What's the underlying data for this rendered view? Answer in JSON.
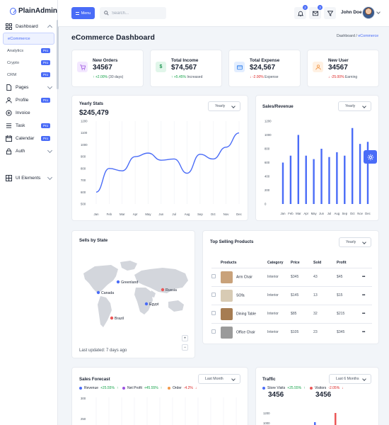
{
  "brand": {
    "name": "PlainAdmin"
  },
  "sidebar": {
    "items": [
      {
        "label": "Dashboard"
      },
      {
        "label": "eCommerce"
      },
      {
        "label": "Analytics",
        "badge": "Pro"
      },
      {
        "label": "Crypto",
        "badge": "Pro"
      },
      {
        "label": "CRM",
        "badge": "Pro"
      },
      {
        "label": "Pages"
      },
      {
        "label": "Profile",
        "badge": "Pro"
      },
      {
        "label": "Invoice"
      },
      {
        "label": "Task",
        "badge": "Pro"
      },
      {
        "label": "Calendar",
        "badge": "Pro"
      },
      {
        "label": "Auth"
      },
      {
        "label": "UI Elements"
      }
    ]
  },
  "header": {
    "menu_label": "Menu",
    "search_placeholder": "Search...",
    "notification_count": "2",
    "message_count": "3",
    "user_name": "John Doe"
  },
  "page": {
    "title": "eCommerce Dashboard",
    "breadcrumb": [
      "Dashboard",
      "eCommerce"
    ]
  },
  "stats": [
    {
      "label": "New Orders",
      "value": "34567",
      "trend": "↑ +2.00%",
      "trend_note": "(30 days)",
      "direction": "up",
      "color": "#9b51e0",
      "bg": "#f3e8ff",
      "icon": "cart-icon"
    },
    {
      "label": "Total Income",
      "value": "$74,567",
      "trend": "↑ +5.45%",
      "trend_note": "Increased",
      "direction": "up",
      "color": "#219653",
      "bg": "#e1f6ea",
      "icon": "dollar-icon"
    },
    {
      "label": "Total Expense",
      "value": "$24,567",
      "trend": "↓ -2.00%",
      "trend_note": "Expense",
      "direction": "down",
      "color": "#2f80ed",
      "bg": "#e3eeff",
      "icon": "wallet-icon"
    },
    {
      "label": "New User",
      "value": "34567",
      "trend": "↓ -25.00%",
      "trend_note": "Earning",
      "direction": "down",
      "color": "#f2994a",
      "bg": "#fff1e3",
      "icon": "user-icon"
    }
  ],
  "yearly_stats": {
    "title": "Yearly Stats",
    "value": "$245,479",
    "filter": "Yearly",
    "chart_data": {
      "type": "line",
      "categories": [
        "Jan",
        "Feb",
        "Mar",
        "Apr",
        "May",
        "Jun",
        "Jul",
        "Aug",
        "Sep",
        "Oct",
        "Nov",
        "Dec"
      ],
      "values": [
        600,
        800,
        780,
        900,
        930,
        870,
        880,
        760,
        920,
        880,
        980,
        1100
      ],
      "ylim": [
        500,
        1200
      ],
      "yticks": [
        500,
        600,
        700,
        800,
        900,
        1000,
        1100,
        1200
      ],
      "color": "#4a6cf7"
    }
  },
  "sales_revenue": {
    "title": "Sales/Revenue",
    "filter": "Yearly",
    "chart_data": {
      "type": "bar",
      "categories": [
        "Jan",
        "Feb",
        "Mar",
        "Apr",
        "May",
        "Jun",
        "Jul",
        "Aug",
        "Sep",
        "Oct",
        "Nov",
        "Dec"
      ],
      "values": [
        600,
        700,
        1000,
        700,
        650,
        800,
        680,
        750,
        700,
        1100,
        870,
        900
      ],
      "ylim": [
        0,
        1200
      ],
      "yticks": [
        0,
        200,
        400,
        600,
        800,
        1000,
        1200
      ],
      "color": "#4a6cf7"
    }
  },
  "sells_by_state": {
    "title": "Sells by State",
    "updated": "Last updated: 7 days ago",
    "markers": [
      {
        "label": "Greenland",
        "color": "#4a6cf7"
      },
      {
        "label": "Canada",
        "color": "#4a6cf7"
      },
      {
        "label": "Russia",
        "color": "#eb5757"
      },
      {
        "label": "Egypt",
        "color": "#4a6cf7"
      },
      {
        "label": "Brazil",
        "color": "#eb5757"
      }
    ],
    "zoom_in": "+",
    "zoom_out": "−"
  },
  "top_products": {
    "title": "Top Selling Products",
    "filter": "Yearly",
    "columns": [
      "Products",
      "Category",
      "Price",
      "Sold",
      "Profit"
    ],
    "rows": [
      {
        "name": "Arm Chair",
        "category": "Interior",
        "price": "$345",
        "sold": "43",
        "profit": "$45",
        "thumb": "#c9a27a"
      },
      {
        "name": "SOfa",
        "category": "Interior",
        "price": "$145",
        "sold": "13",
        "profit": "$15",
        "thumb": "#d8cbb4"
      },
      {
        "name": "Dining Table",
        "category": "Interior",
        "price": "$85",
        "sold": "32",
        "profit": "$215",
        "thumb": "#a67c52"
      },
      {
        "name": "Office Chair",
        "category": "Interior",
        "price": "$105",
        "sold": "23",
        "profit": "$345",
        "thumb": "#9a9a9a"
      }
    ]
  },
  "sales_forecast": {
    "title": "Sales Forecast",
    "filter": "Last Month",
    "legend": [
      {
        "name": "Revenue",
        "change": "+25.55%",
        "dir": "↑",
        "color": "#4a6cf7",
        "trend_color": "#16a34a"
      },
      {
        "name": "Net Profit",
        "change": "+45.55%",
        "dir": "↑",
        "color": "#9b51e0",
        "trend_color": "#16a34a"
      },
      {
        "name": "Order",
        "change": "-4.2%",
        "dir": "↓",
        "color": "#f2994a",
        "trend_color": "#dc2626"
      }
    ],
    "yticks": [
      "300",
      "250"
    ]
  },
  "traffic": {
    "title": "Traffic",
    "filter": "Last 6 Months",
    "legend": [
      {
        "name": "Store Visits",
        "change": "+25.55%",
        "dir": "↑",
        "value": "3456",
        "color": "#4a6cf7",
        "trend_color": "#16a34a"
      },
      {
        "name": "Visitors",
        "change": "-2.05%",
        "dir": "↓",
        "value": "3456",
        "color": "#eb5757",
        "trend_color": "#dc2626"
      }
    ],
    "yticks": [
      "1200",
      "1000"
    ]
  }
}
